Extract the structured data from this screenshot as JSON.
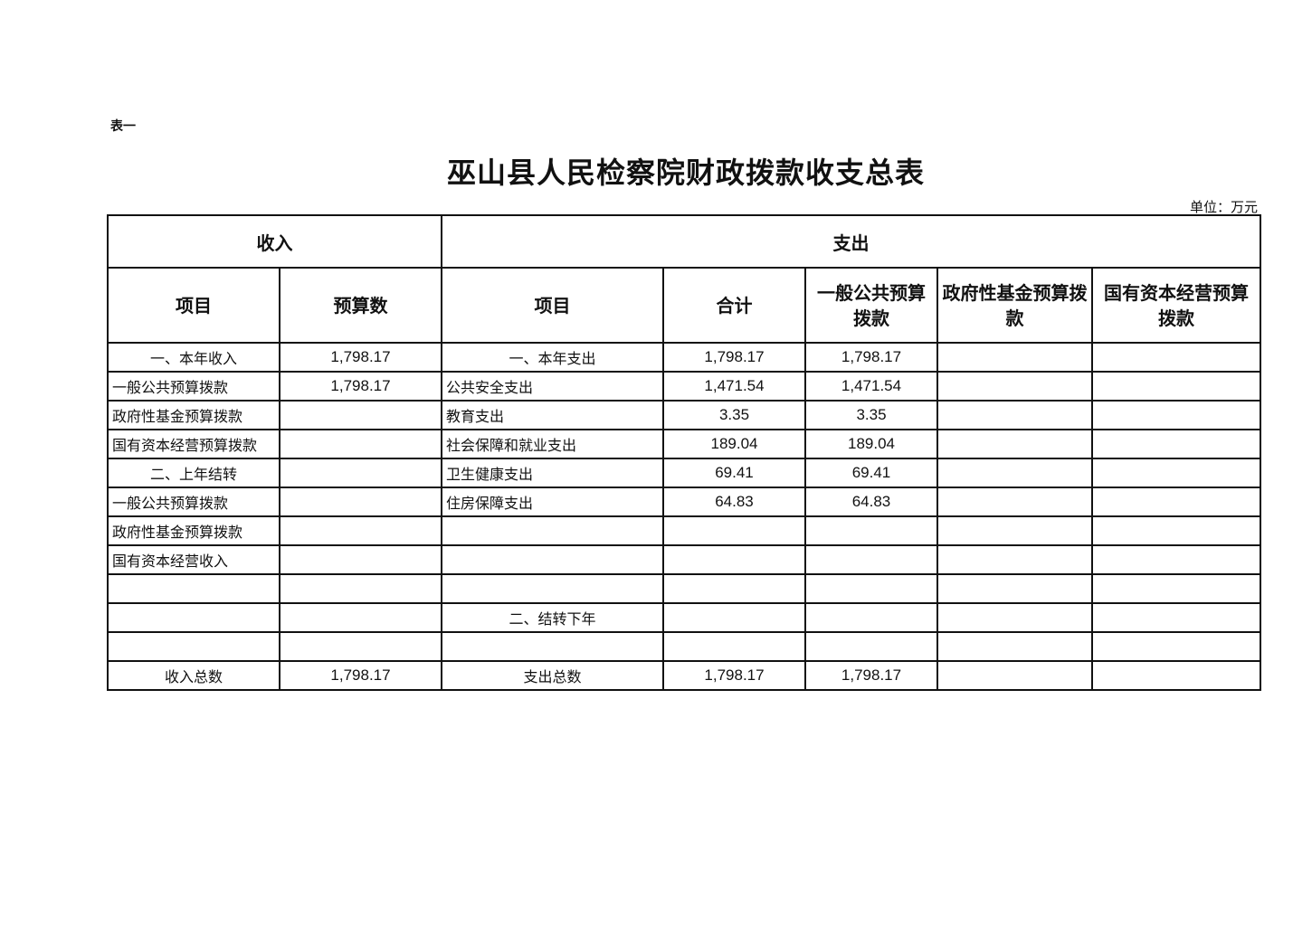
{
  "table_label": "表一",
  "title": "巫山县人民检察院财政拨款收支总表",
  "unit": "单位：万元",
  "header": {
    "income": "收入",
    "expense": "支出",
    "cols": [
      "项目",
      "预算数",
      "项目",
      "合计",
      "一般公共预算拨款",
      "政府性基金预算拨款",
      "国有资本经营预算拨款"
    ]
  },
  "rows": [
    [
      "一、本年收入",
      "1,798.17",
      "一、本年支出",
      "1,798.17",
      "1,798.17",
      "",
      ""
    ],
    [
      "一般公共预算拨款",
      "1,798.17",
      "公共安全支出",
      "1,471.54",
      "1,471.54",
      "",
      ""
    ],
    [
      "政府性基金预算拨款",
      "",
      "教育支出",
      "3.35",
      "3.35",
      "",
      ""
    ],
    [
      "国有资本经营预算拨款",
      "",
      "社会保障和就业支出",
      "189.04",
      "189.04",
      "",
      ""
    ],
    [
      "二、上年结转",
      "",
      "卫生健康支出",
      "69.41",
      "69.41",
      "",
      ""
    ],
    [
      "一般公共预算拨款",
      "",
      "住房保障支出",
      "64.83",
      "64.83",
      "",
      ""
    ],
    [
      "政府性基金预算拨款",
      "",
      "",
      "",
      "",
      "",
      ""
    ],
    [
      "国有资本经营收入",
      "",
      "",
      "",
      "",
      "",
      ""
    ],
    [
      "",
      "",
      "",
      "",
      "",
      "",
      ""
    ],
    [
      "",
      "",
      "二、结转下年",
      "",
      "",
      "",
      ""
    ],
    [
      "",
      "",
      "",
      "",
      "",
      "",
      ""
    ],
    [
      "收入总数",
      "1,798.17",
      "支出总数",
      "1,798.17",
      "1,798.17",
      "",
      ""
    ]
  ]
}
